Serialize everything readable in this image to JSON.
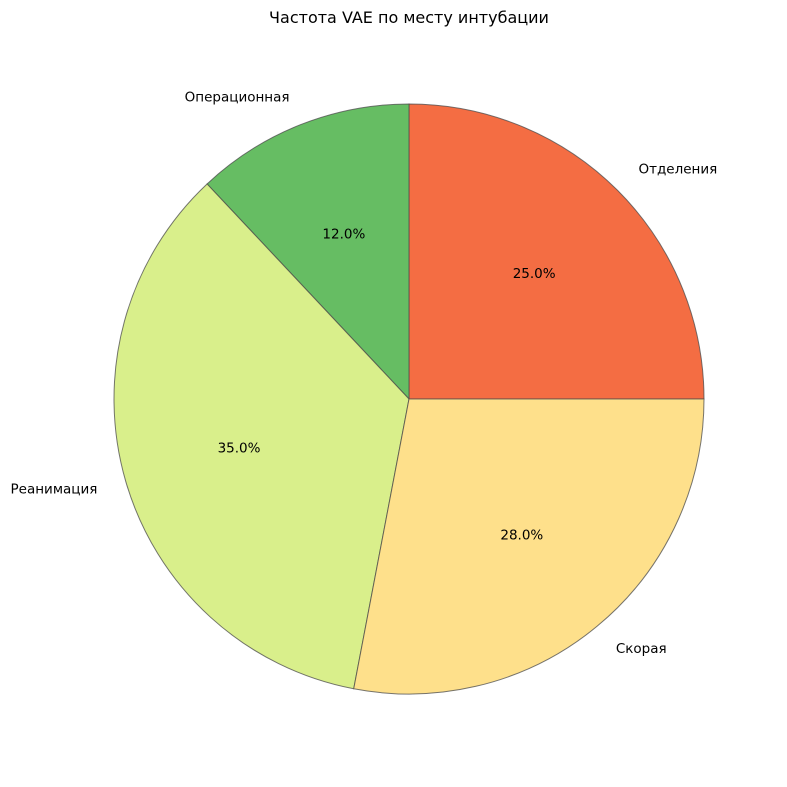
{
  "chart_data": {
    "type": "pie",
    "title": "Частота VAE по месту интубации",
    "start_angle_deg": 0,
    "direction": "counterclockwise",
    "slices": [
      {
        "label": "Отделения",
        "value": 25.0,
        "pct_label": "25.0%",
        "color": "#f46d43"
      },
      {
        "label": "Операционная",
        "value": 12.0,
        "pct_label": "12.0%",
        "color": "#66bd63"
      },
      {
        "label": "Реанимация",
        "value": 35.0,
        "pct_label": "35.0%",
        "color": "#d9ef8b"
      },
      {
        "label": "Скорая",
        "value": 28.0,
        "pct_label": "28.0%",
        "color": "#fee08b"
      }
    ]
  }
}
